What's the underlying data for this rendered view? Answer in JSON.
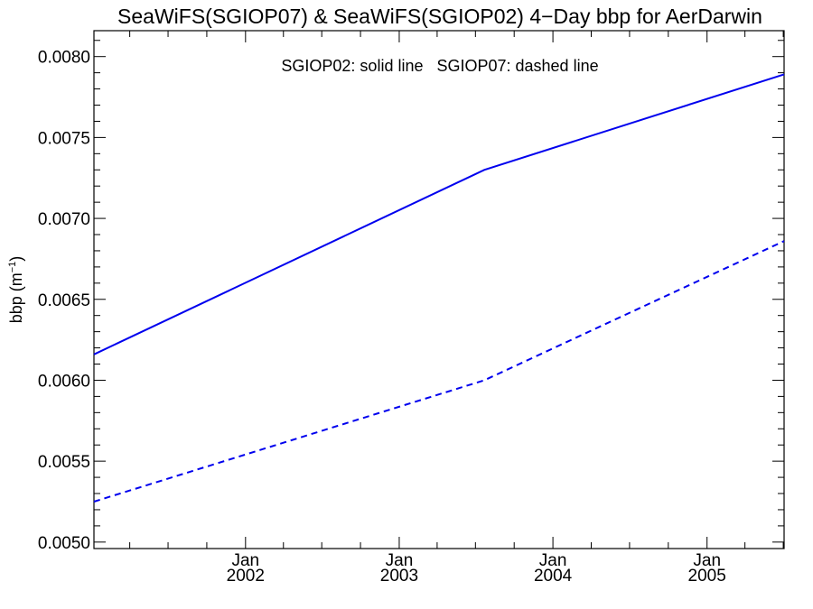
{
  "chart_data": {
    "type": "line",
    "title": "SeaWiFS(SGIOP07) & SeaWiFS(SGIOP02) 4−Day bbp for AerDarwin",
    "annotation": "SGIOP02: solid line   SGIOP07: dashed line",
    "ylabel": "bbp (m",
    "ylabel_exponent": "−1",
    "ylabel_close": ")",
    "xlim": [
      "2001-01-06",
      "2005-07-03"
    ],
    "ylim": [
      0.00496,
      0.00816
    ],
    "y_ticks": [
      "0.0050",
      "0.0055",
      "0.0060",
      "0.0065",
      "0.0070",
      "0.0075",
      "0.0080"
    ],
    "x_ticks": [
      {
        "date": "2002-01-01",
        "month": "Jan",
        "year": "2002"
      },
      {
        "date": "2003-01-01",
        "month": "Jan",
        "year": "2003"
      },
      {
        "date": "2004-01-01",
        "month": "Jan",
        "year": "2004"
      },
      {
        "date": "2005-01-01",
        "month": "Jan",
        "year": "2005"
      }
    ],
    "grid": false,
    "legend": "top-center",
    "series": [
      {
        "name": "SGIOP02",
        "style": "solid",
        "color": "#0000ee",
        "points": [
          {
            "x": "2001-01-06",
            "y": 0.00616
          },
          {
            "x": "2003-07-22",
            "y": 0.0073
          },
          {
            "x": "2005-07-03",
            "y": 0.00789
          }
        ]
      },
      {
        "name": "SGIOP07",
        "style": "dashed",
        "color": "#0000ee",
        "points": [
          {
            "x": "2001-01-06",
            "y": 0.00525
          },
          {
            "x": "2003-07-22",
            "y": 0.006
          },
          {
            "x": "2005-07-03",
            "y": 0.00686
          }
        ]
      }
    ]
  }
}
